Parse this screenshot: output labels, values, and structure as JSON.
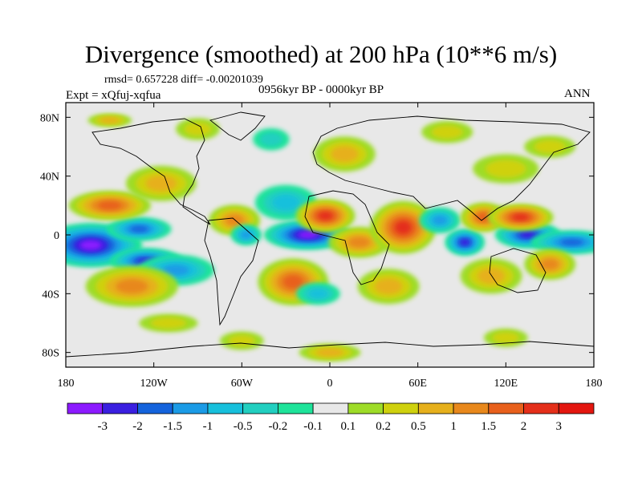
{
  "header": {
    "title": "Divergence (smoothed) at 200 hPa (10**6 m/s)",
    "stats": "rmsd= 0.657228 diff= -0.00201039",
    "experiment": "Expt = xQfuj-xqfua",
    "period": "0956kyr BP - 0000kyr BP",
    "season": "ANN"
  },
  "chart_data": {
    "type": "heatmap",
    "title": "Divergence (smoothed) at 200 hPa (10**6 m/s)",
    "projection": "cylindrical equidistant",
    "x_range": [
      -180,
      180
    ],
    "y_range": [
      -90,
      90
    ],
    "x_ticks": [
      {
        "value": -180,
        "label": "180"
      },
      {
        "value": -120,
        "label": "120W"
      },
      {
        "value": -60,
        "label": "60W"
      },
      {
        "value": 0,
        "label": "0"
      },
      {
        "value": 60,
        "label": "60E"
      },
      {
        "value": 120,
        "label": "120E"
      },
      {
        "value": 180,
        "label": "180"
      }
    ],
    "y_ticks": [
      {
        "value": 80,
        "label": "80N"
      },
      {
        "value": 40,
        "label": "40N"
      },
      {
        "value": 0,
        "label": "0"
      },
      {
        "value": -40,
        "label": "40S"
      },
      {
        "value": -80,
        "label": "80S"
      }
    ],
    "colorbar": {
      "labels": [
        "-3",
        "-2",
        "-1.5",
        "-1",
        "-0.5",
        "-0.2",
        "-0.1",
        "0.1",
        "0.2",
        "0.5",
        "1",
        "1.5",
        "2",
        "3"
      ],
      "colors": [
        "#8c1aff",
        "#3a1fe0",
        "#1463dc",
        "#1b9be6",
        "#17c0dc",
        "#22cfc0",
        "#1ee39a",
        "#e8e8e8",
        "#9edc28",
        "#cfd10e",
        "#e6b01c",
        "#e8881c",
        "#e8601c",
        "#e42f1a",
        "#e3160f"
      ]
    },
    "anomalies": [
      {
        "lon": -163,
        "lat": -7,
        "value": -3.0,
        "w": 14,
        "h": 6
      },
      {
        "lon": -125,
        "lat": -18,
        "value": -2.0,
        "w": 11,
        "h": 4
      },
      {
        "lon": -130,
        "lat": 4,
        "value": -1.5,
        "w": 11,
        "h": 4
      },
      {
        "lon": -105,
        "lat": -24,
        "value": -1.0,
        "w": 15,
        "h": 6
      },
      {
        "lon": -150,
        "lat": 20,
        "value": 1.5,
        "w": 14,
        "h": 5
      },
      {
        "lon": -135,
        "lat": -35,
        "value": 1.0,
        "w": 18,
        "h": 8
      },
      {
        "lon": -115,
        "lat": 35,
        "value": 0.5,
        "w": 16,
        "h": 8
      },
      {
        "lon": -65,
        "lat": 10,
        "value": 1.0,
        "w": 10,
        "h": 6
      },
      {
        "lon": -57,
        "lat": 0,
        "value": -1.0,
        "w": 6,
        "h": 4
      },
      {
        "lon": -30,
        "lat": 22,
        "value": -0.5,
        "w": 14,
        "h": 8
      },
      {
        "lon": -15,
        "lat": 0,
        "value": -3.0,
        "w": 12,
        "h": 4
      },
      {
        "lon": -3,
        "lat": 13,
        "value": 2.0,
        "w": 9,
        "h": 5
      },
      {
        "lon": -25,
        "lat": -32,
        "value": 1.5,
        "w": 12,
        "h": 8
      },
      {
        "lon": -8,
        "lat": -40,
        "value": -0.5,
        "w": 10,
        "h": 5
      },
      {
        "lon": 20,
        "lat": -5,
        "value": 1.0,
        "w": 12,
        "h": 6
      },
      {
        "lon": 50,
        "lat": 5,
        "value": 2.0,
        "w": 10,
        "h": 8
      },
      {
        "lon": 75,
        "lat": 10,
        "value": -1.0,
        "w": 8,
        "h": 5
      },
      {
        "lon": 92,
        "lat": -5,
        "value": -2.0,
        "w": 6,
        "h": 4
      },
      {
        "lon": 105,
        "lat": 12,
        "value": 1.5,
        "w": 8,
        "h": 5
      },
      {
        "lon": 135,
        "lat": 0,
        "value": -2.0,
        "w": 10,
        "h": 4
      },
      {
        "lon": 130,
        "lat": 12,
        "value": 2.0,
        "w": 10,
        "h": 4
      },
      {
        "lon": 165,
        "lat": -5,
        "value": -1.5,
        "w": 14,
        "h": 4
      },
      {
        "lon": 150,
        "lat": -20,
        "value": 1.0,
        "w": 10,
        "h": 6
      },
      {
        "lon": 110,
        "lat": -28,
        "value": 0.5,
        "w": 14,
        "h": 8
      },
      {
        "lon": 40,
        "lat": -35,
        "value": 0.5,
        "w": 14,
        "h": 8
      },
      {
        "lon": 120,
        "lat": 45,
        "value": 0.2,
        "w": 18,
        "h": 8
      },
      {
        "lon": 150,
        "lat": 60,
        "value": 0.2,
        "w": 14,
        "h": 6
      },
      {
        "lon": -90,
        "lat": 72,
        "value": 0.2,
        "w": 12,
        "h": 6
      },
      {
        "lon": -40,
        "lat": 65,
        "value": -0.2,
        "w": 10,
        "h": 6
      },
      {
        "lon": 10,
        "lat": 55,
        "value": 0.5,
        "w": 14,
        "h": 8
      },
      {
        "lon": 80,
        "lat": 70,
        "value": 0.2,
        "w": 14,
        "h": 6
      },
      {
        "lon": -150,
        "lat": 78,
        "value": 0.5,
        "w": 10,
        "h": 3
      },
      {
        "lon": -110,
        "lat": -60,
        "value": 0.2,
        "w": 16,
        "h": 5
      },
      {
        "lon": -60,
        "lat": -72,
        "value": 0.2,
        "w": 12,
        "h": 5
      },
      {
        "lon": 0,
        "lat": -80,
        "value": 0.5,
        "w": 14,
        "h": 4
      },
      {
        "lon": 120,
        "lat": -70,
        "value": 0.2,
        "w": 12,
        "h": 5
      }
    ]
  }
}
